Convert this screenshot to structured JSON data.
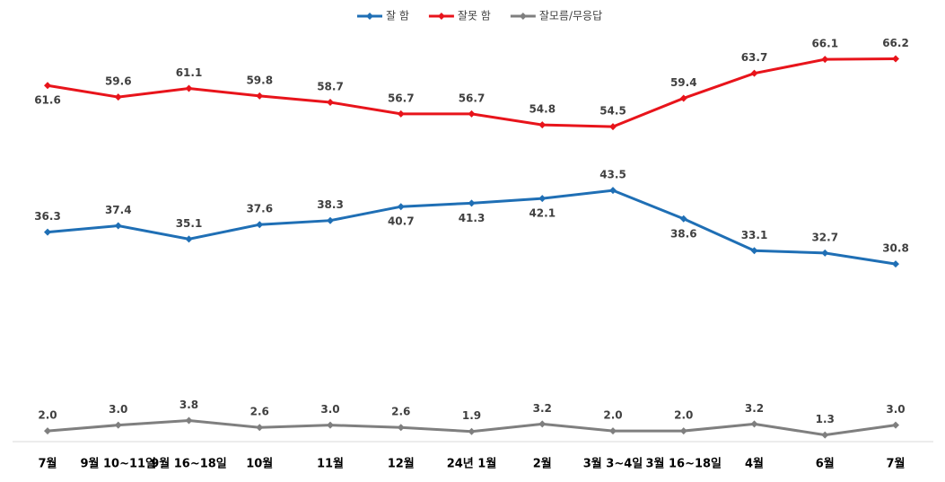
{
  "chart_data": {
    "type": "line",
    "categories": [
      "7월",
      "9월 10~11일",
      "9월 16~18일",
      "10월",
      "11월",
      "12월",
      "24년 1월",
      "2월",
      "3월 3~4일",
      "3월 16~18일",
      "4월",
      "6월",
      "7월"
    ],
    "series": [
      {
        "name": "잘 함",
        "color": "#1f6fb5",
        "values": [
          36.3,
          37.4,
          35.1,
          37.6,
          38.3,
          40.7,
          41.3,
          42.1,
          43.5,
          38.6,
          33.1,
          32.7,
          30.8
        ],
        "value_labels": [
          "36.3",
          "37.4",
          "35.1",
          "37.6",
          "38.3",
          "40.7",
          "41.3",
          "42.1",
          "43.5",
          "38.6",
          "33.1",
          "32.7",
          "30.8"
        ]
      },
      {
        "name": "잘못 함",
        "color": "#e8141b",
        "values": [
          61.6,
          59.6,
          61.1,
          59.8,
          58.7,
          56.7,
          56.7,
          54.8,
          54.5,
          59.4,
          63.7,
          66.1,
          66.2
        ],
        "value_labels": [
          "61.6",
          "59.6",
          "61.1",
          "59.8",
          "58.7",
          "56.7",
          "56.7",
          "54.8",
          "54.5",
          "59.4",
          "63.7",
          "66.1",
          "66.2"
        ]
      },
      {
        "name": "잘모름/무응답",
        "color": "#7f7f7f",
        "values": [
          2.0,
          3.0,
          3.8,
          2.6,
          3.0,
          2.6,
          1.9,
          3.2,
          2.0,
          2.0,
          3.2,
          1.3,
          3.0
        ],
        "value_labels": [
          "2.0",
          "3.0",
          "3.8",
          "2.6",
          "3.0",
          "2.6",
          "1.9",
          "3.2",
          "2.0",
          "2.0",
          "3.2",
          "1.3",
          "3.0"
        ]
      }
    ],
    "ylim": [
      0,
      70
    ],
    "legend": "top"
  }
}
